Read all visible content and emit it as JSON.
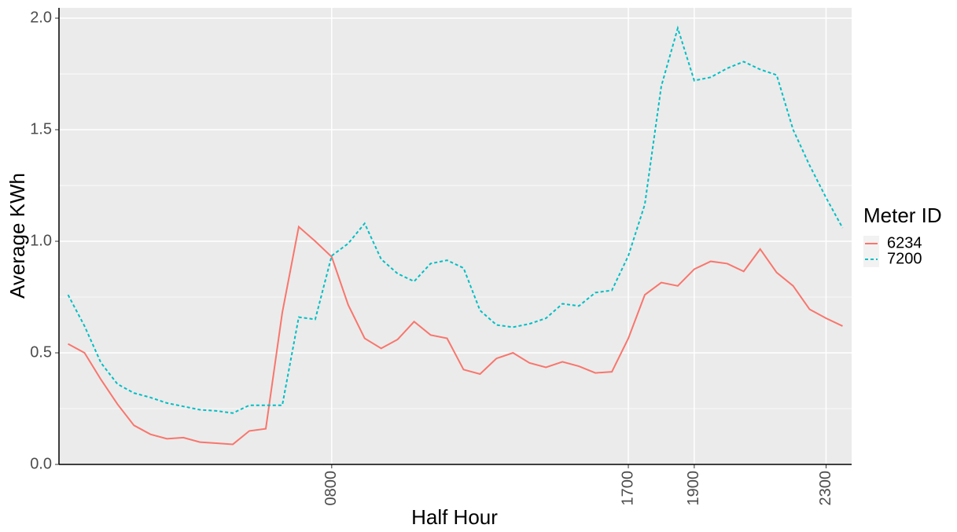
{
  "chart_data": {
    "type": "line",
    "x_label": "Half Hour",
    "y_label": "Average KWh",
    "legend_title": "Meter ID",
    "categories": [
      null,
      null,
      null,
      null,
      null,
      null,
      null,
      null,
      null,
      null,
      null,
      null,
      null,
      null,
      null,
      null,
      "0800",
      null,
      null,
      null,
      null,
      null,
      null,
      null,
      null,
      null,
      null,
      null,
      null,
      null,
      null,
      null,
      null,
      null,
      "1700",
      null,
      null,
      null,
      "1900",
      null,
      null,
      null,
      null,
      null,
      null,
      null,
      "2300",
      null
    ],
    "series": [
      {
        "name": "6234",
        "color": "#f8766d",
        "linetype": "solid",
        "values": [
          0.54,
          0.5,
          0.38,
          0.27,
          0.175,
          0.135,
          0.115,
          0.12,
          0.1,
          0.095,
          0.09,
          0.15,
          0.16,
          0.68,
          1.065,
          1.0,
          0.93,
          0.715,
          0.565,
          0.52,
          0.56,
          0.64,
          0.58,
          0.565,
          0.425,
          0.405,
          0.475,
          0.5,
          0.455,
          0.435,
          0.46,
          0.44,
          0.41,
          0.415,
          0.565,
          0.76,
          0.815,
          0.8,
          0.875,
          0.91,
          0.9,
          0.865,
          0.965,
          0.86,
          0.8,
          0.695,
          0.655,
          0.62
        ]
      },
      {
        "name": "7200",
        "color": "#00bfc4",
        "linetype": "dashed",
        "values": [
          0.76,
          0.62,
          0.455,
          0.36,
          0.32,
          0.3,
          0.275,
          0.26,
          0.245,
          0.24,
          0.23,
          0.265,
          0.265,
          0.265,
          0.66,
          0.65,
          0.935,
          0.99,
          1.08,
          0.92,
          0.855,
          0.82,
          0.9,
          0.915,
          0.88,
          0.69,
          0.625,
          0.615,
          0.63,
          0.655,
          0.72,
          0.71,
          0.77,
          0.78,
          0.935,
          1.165,
          1.695,
          1.955,
          1.72,
          1.735,
          1.775,
          1.805,
          1.77,
          1.745,
          1.5,
          1.34,
          1.195,
          1.06
        ]
      }
    ],
    "ylim": [
      0,
      2.046
    ],
    "yticks": [
      {
        "value": 0,
        "label": "0.0"
      },
      0.5,
      {
        "value": 1,
        "label": "1.0"
      },
      1.5,
      {
        "value": 2,
        "label": "2.0"
      }
    ],
    "grid": true,
    "legend": "right"
  }
}
